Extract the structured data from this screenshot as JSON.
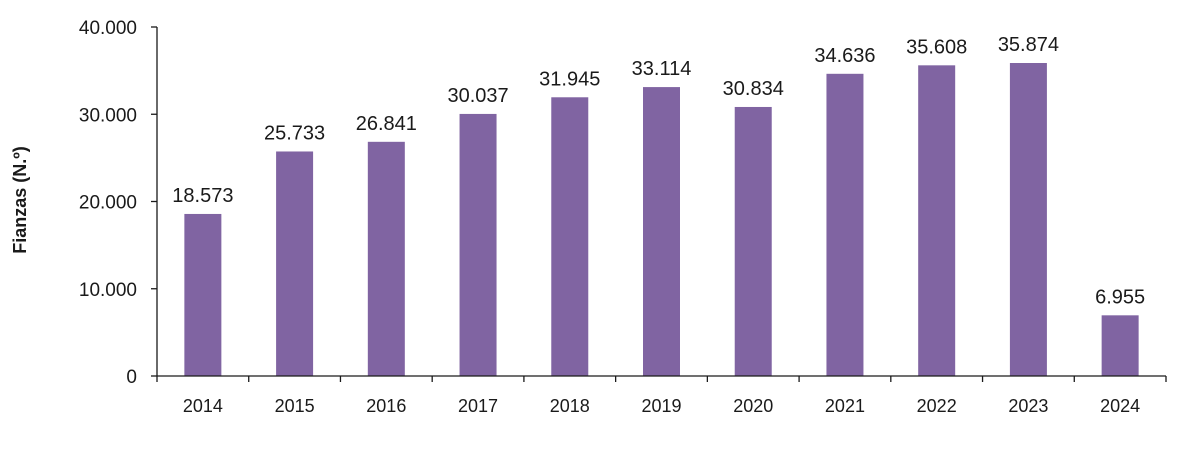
{
  "chart_data": {
    "type": "bar",
    "title": "",
    "xlabel": "",
    "ylabel": "Fianzas (N.º)",
    "categories": [
      "2014",
      "2015",
      "2016",
      "2017",
      "2018",
      "2019",
      "2020",
      "2021",
      "2022",
      "2023",
      "2024"
    ],
    "values": [
      18573,
      25733,
      26841,
      30037,
      31945,
      33114,
      30834,
      34636,
      35608,
      35874,
      6955
    ],
    "data_labels": [
      "18.573",
      "25.733",
      "26.841",
      "30.037",
      "31.945",
      "33.114",
      "30.834",
      "34.636",
      "35.608",
      "35.874",
      "6.955"
    ],
    "ylim": [
      0,
      40000
    ],
    "yticks": [
      0,
      10000,
      20000,
      30000,
      40000
    ],
    "ytick_labels": [
      "0",
      "10.000",
      "20.000",
      "30.000",
      "40.000"
    ],
    "grid": false,
    "legend": "none",
    "bar_color": "#8064A2"
  }
}
